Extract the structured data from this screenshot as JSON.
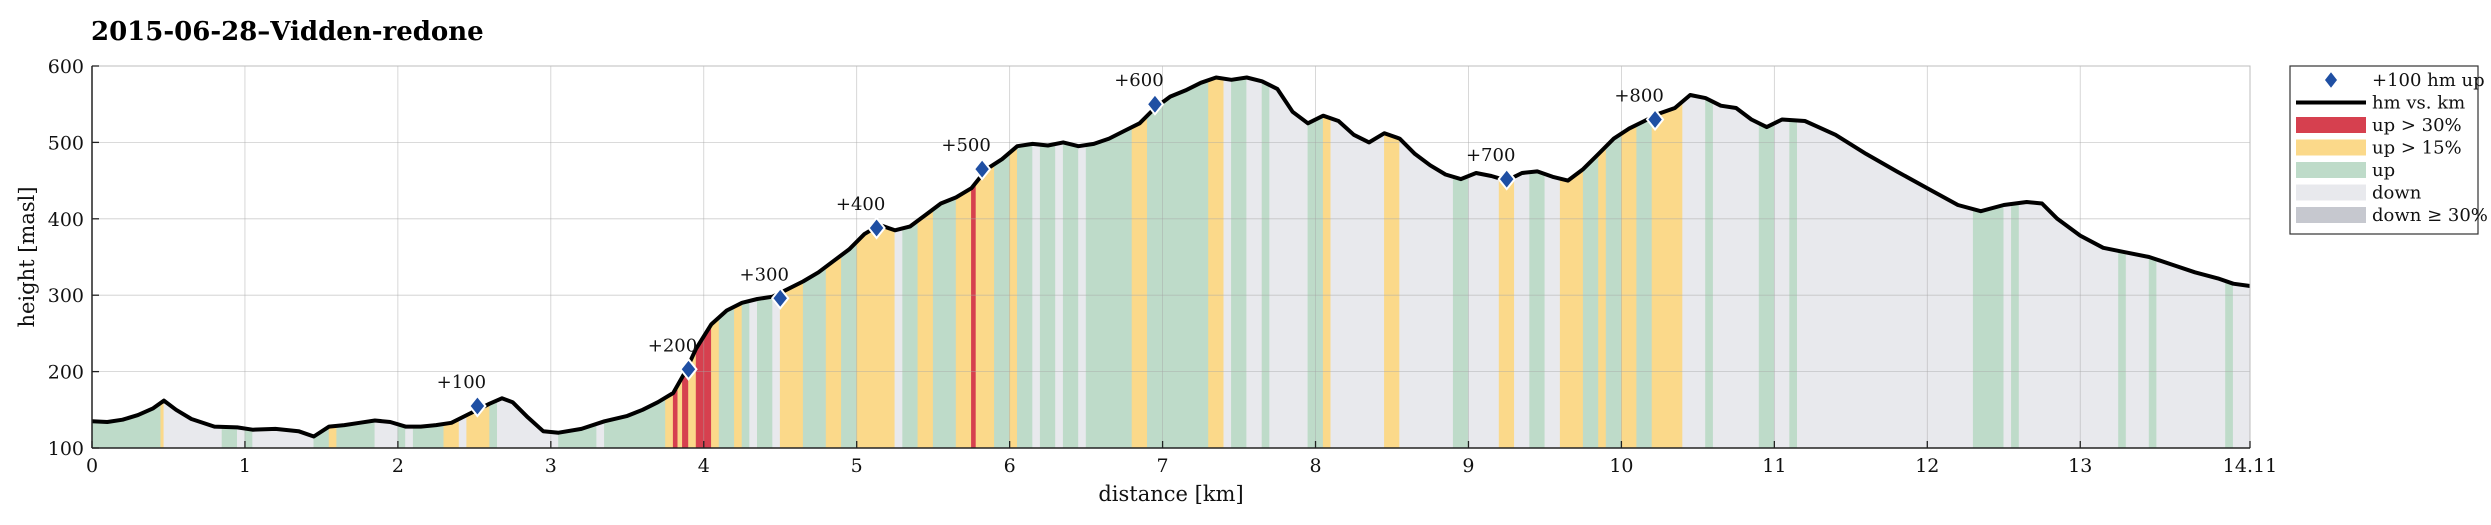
{
  "chart_data": {
    "type": "area",
    "title": "2015-06-28–Vidden-redone",
    "xlabel": "distance [km]",
    "ylabel": "height [masl]",
    "xlim": [
      0,
      14.11
    ],
    "ylim": [
      100,
      600
    ],
    "x_ticks": [
      0,
      1,
      2,
      3,
      4,
      5,
      6,
      7,
      8,
      9,
      10,
      11,
      12,
      13,
      14.11
    ],
    "x_tick_labels": [
      "0",
      "1",
      "2",
      "3",
      "4",
      "5",
      "6",
      "7",
      "8",
      "9",
      "10",
      "11",
      "12",
      "13",
      "14.11"
    ],
    "y_ticks": [
      100,
      200,
      300,
      400,
      500,
      600
    ],
    "grid": true,
    "legend_position": "outside-right-top",
    "legend": [
      {
        "key": "marker",
        "label": "+100 hm up",
        "color": "#1f4fa3"
      },
      {
        "key": "line",
        "label": "hm vs. km",
        "color": "#000000"
      },
      {
        "key": "up30",
        "label": "up > 30%",
        "color": "#d6404f"
      },
      {
        "key": "up15",
        "label": "up > 15%",
        "color": "#fbd98a"
      },
      {
        "key": "up",
        "label": "up",
        "color": "#bedbc9"
      },
      {
        "key": "down",
        "label": "down",
        "color": "#e8e9ed"
      },
      {
        "key": "down30",
        "label": "down ≥ 30%",
        "color": "#c6c8cf"
      }
    ],
    "profile": {
      "x": [
        0,
        0.1,
        0.2,
        0.3,
        0.4,
        0.47,
        0.55,
        0.65,
        0.8,
        0.95,
        1.05,
        1.2,
        1.35,
        1.45,
        1.55,
        1.65,
        1.75,
        1.85,
        1.95,
        2.05,
        2.15,
        2.25,
        2.35,
        2.45,
        2.52,
        2.6,
        2.68,
        2.75,
        2.85,
        2.95,
        3.05,
        3.2,
        3.35,
        3.5,
        3.6,
        3.7,
        3.8,
        3.88,
        3.95,
        4.05,
        4.15,
        4.25,
        4.35,
        4.45,
        4.55,
        4.65,
        4.75,
        4.85,
        4.95,
        5.05,
        5.15,
        5.25,
        5.35,
        5.45,
        5.55,
        5.65,
        5.75,
        5.85,
        5.95,
        6.05,
        6.15,
        6.25,
        6.35,
        6.45,
        6.55,
        6.65,
        6.75,
        6.85,
        6.95,
        7.05,
        7.15,
        7.25,
        7.35,
        7.45,
        7.55,
        7.65,
        7.75,
        7.85,
        7.95,
        8.05,
        8.15,
        8.25,
        8.35,
        8.45,
        8.55,
        8.65,
        8.75,
        8.85,
        8.95,
        9.05,
        9.15,
        9.25,
        9.35,
        9.45,
        9.55,
        9.65,
        9.75,
        9.85,
        9.95,
        10.05,
        10.15,
        10.25,
        10.35,
        10.45,
        10.55,
        10.65,
        10.75,
        10.85,
        10.95,
        11.05,
        11.2,
        11.4,
        11.6,
        11.8,
        12.0,
        12.2,
        12.35,
        12.5,
        12.65,
        12.75,
        12.85,
        13.0,
        13.15,
        13.3,
        13.45,
        13.6,
        13.75,
        13.9,
        14.0,
        14.11
      ],
      "y": [
        135,
        134,
        137,
        143,
        152,
        162,
        150,
        138,
        128,
        127,
        124,
        125,
        122,
        115,
        128,
        130,
        133,
        136,
        134,
        128,
        128,
        130,
        133,
        143,
        150,
        158,
        165,
        160,
        140,
        122,
        120,
        125,
        135,
        142,
        150,
        160,
        172,
        200,
        230,
        262,
        280,
        290,
        295,
        298,
        308,
        318,
        330,
        345,
        360,
        380,
        392,
        385,
        390,
        405,
        420,
        428,
        440,
        465,
        478,
        495,
        498,
        496,
        500,
        495,
        498,
        505,
        515,
        525,
        545,
        560,
        568,
        578,
        585,
        582,
        585,
        580,
        570,
        540,
        525,
        535,
        528,
        510,
        500,
        512,
        505,
        485,
        470,
        458,
        452,
        460,
        456,
        450,
        460,
        462,
        455,
        450,
        465,
        485,
        505,
        518,
        528,
        538,
        545,
        562,
        558,
        548,
        545,
        530,
        520,
        530,
        528,
        510,
        485,
        462,
        440,
        418,
        410,
        418,
        422,
        420,
        400,
        378,
        362,
        356,
        350,
        340,
        330,
        322,
        315,
        312
      ]
    },
    "milestones": [
      {
        "label": "+100",
        "x": 2.52,
        "y": 155
      },
      {
        "label": "+200",
        "x": 3.9,
        "y": 203
      },
      {
        "label": "+300",
        "x": 4.5,
        "y": 296
      },
      {
        "label": "+400",
        "x": 5.13,
        "y": 388
      },
      {
        "label": "+500",
        "x": 5.82,
        "y": 465
      },
      {
        "label": "+600",
        "x": 6.95,
        "y": 550
      },
      {
        "label": "+700",
        "x": 9.25,
        "y": 452
      },
      {
        "label": "+800",
        "x": 10.22,
        "y": 530
      }
    ],
    "segments": [
      [
        0,
        0.45,
        "up"
      ],
      [
        0.45,
        0.47,
        "up15"
      ],
      [
        0.47,
        0.85,
        "down"
      ],
      [
        0.85,
        0.95,
        "up"
      ],
      [
        0.95,
        1.0,
        "down"
      ],
      [
        1.0,
        1.05,
        "up"
      ],
      [
        1.05,
        1.45,
        "down"
      ],
      [
        1.45,
        1.55,
        "up"
      ],
      [
        1.55,
        1.6,
        "up15"
      ],
      [
        1.6,
        1.85,
        "up"
      ],
      [
        1.85,
        2.0,
        "down"
      ],
      [
        2.0,
        2.05,
        "up"
      ],
      [
        2.05,
        2.1,
        "down"
      ],
      [
        2.1,
        2.3,
        "up"
      ],
      [
        2.3,
        2.4,
        "up15"
      ],
      [
        2.4,
        2.45,
        "down"
      ],
      [
        2.45,
        2.6,
        "up15"
      ],
      [
        2.6,
        2.65,
        "up"
      ],
      [
        2.65,
        2.8,
        "down"
      ],
      [
        2.8,
        3.05,
        "down"
      ],
      [
        3.05,
        3.3,
        "up"
      ],
      [
        3.3,
        3.35,
        "down"
      ],
      [
        3.35,
        3.75,
        "up"
      ],
      [
        3.75,
        3.8,
        "up15"
      ],
      [
        3.8,
        3.83,
        "up30"
      ],
      [
        3.83,
        3.86,
        "up15"
      ],
      [
        3.86,
        3.9,
        "up30"
      ],
      [
        3.9,
        3.95,
        "up15"
      ],
      [
        3.95,
        4.05,
        "up30"
      ],
      [
        4.05,
        4.1,
        "up15"
      ],
      [
        4.1,
        4.2,
        "up"
      ],
      [
        4.2,
        4.25,
        "up15"
      ],
      [
        4.25,
        4.3,
        "up"
      ],
      [
        4.3,
        4.35,
        "down"
      ],
      [
        4.35,
        4.45,
        "up"
      ],
      [
        4.45,
        4.5,
        "down"
      ],
      [
        4.5,
        4.65,
        "up15"
      ],
      [
        4.65,
        4.8,
        "up"
      ],
      [
        4.8,
        4.9,
        "up15"
      ],
      [
        4.9,
        5.0,
        "up"
      ],
      [
        5.0,
        5.25,
        "up15"
      ],
      [
        5.25,
        5.3,
        "down"
      ],
      [
        5.3,
        5.4,
        "up"
      ],
      [
        5.4,
        5.5,
        "up15"
      ],
      [
        5.5,
        5.65,
        "up"
      ],
      [
        5.65,
        5.75,
        "up15"
      ],
      [
        5.75,
        5.78,
        "up30"
      ],
      [
        5.78,
        5.9,
        "up15"
      ],
      [
        5.9,
        6.0,
        "up"
      ],
      [
        6.0,
        6.05,
        "up15"
      ],
      [
        6.05,
        6.15,
        "up"
      ],
      [
        6.15,
        6.2,
        "down"
      ],
      [
        6.2,
        6.3,
        "up"
      ],
      [
        6.3,
        6.35,
        "down"
      ],
      [
        6.35,
        6.45,
        "up"
      ],
      [
        6.45,
        6.5,
        "down"
      ],
      [
        6.5,
        6.8,
        "up"
      ],
      [
        6.8,
        6.9,
        "up15"
      ],
      [
        6.9,
        7.3,
        "up"
      ],
      [
        7.3,
        7.4,
        "up15"
      ],
      [
        7.4,
        7.45,
        "down"
      ],
      [
        7.45,
        7.55,
        "up"
      ],
      [
        7.55,
        7.65,
        "down"
      ],
      [
        7.65,
        7.7,
        "up"
      ],
      [
        7.7,
        7.95,
        "down"
      ],
      [
        7.95,
        8.05,
        "up"
      ],
      [
        8.05,
        8.1,
        "up15"
      ],
      [
        8.1,
        8.45,
        "down"
      ],
      [
        8.45,
        8.55,
        "up15"
      ],
      [
        8.55,
        8.9,
        "down"
      ],
      [
        8.9,
        9.0,
        "up"
      ],
      [
        9.0,
        9.2,
        "down"
      ],
      [
        9.2,
        9.3,
        "up15"
      ],
      [
        9.3,
        9.4,
        "down"
      ],
      [
        9.4,
        9.5,
        "up"
      ],
      [
        9.5,
        9.6,
        "down"
      ],
      [
        9.6,
        9.75,
        "up15"
      ],
      [
        9.75,
        9.85,
        "up"
      ],
      [
        9.85,
        9.9,
        "up15"
      ],
      [
        9.9,
        10.0,
        "up"
      ],
      [
        10.0,
        10.1,
        "up15"
      ],
      [
        10.1,
        10.2,
        "up"
      ],
      [
        10.2,
        10.4,
        "up15"
      ],
      [
        10.4,
        10.55,
        "down"
      ],
      [
        10.55,
        10.6,
        "up"
      ],
      [
        10.6,
        10.9,
        "down"
      ],
      [
        10.9,
        11.0,
        "up"
      ],
      [
        11.0,
        11.1,
        "down"
      ],
      [
        11.1,
        11.15,
        "up"
      ],
      [
        11.15,
        12.3,
        "down"
      ],
      [
        12.3,
        12.5,
        "up"
      ],
      [
        12.5,
        12.55,
        "down"
      ],
      [
        12.55,
        12.6,
        "up"
      ],
      [
        12.6,
        13.25,
        "down"
      ],
      [
        13.25,
        13.3,
        "up"
      ],
      [
        13.3,
        13.45,
        "down"
      ],
      [
        13.45,
        13.5,
        "up"
      ],
      [
        13.5,
        13.95,
        "down"
      ],
      [
        13.95,
        14.0,
        "up"
      ],
      [
        14.0,
        14.11,
        "down"
      ]
    ]
  }
}
